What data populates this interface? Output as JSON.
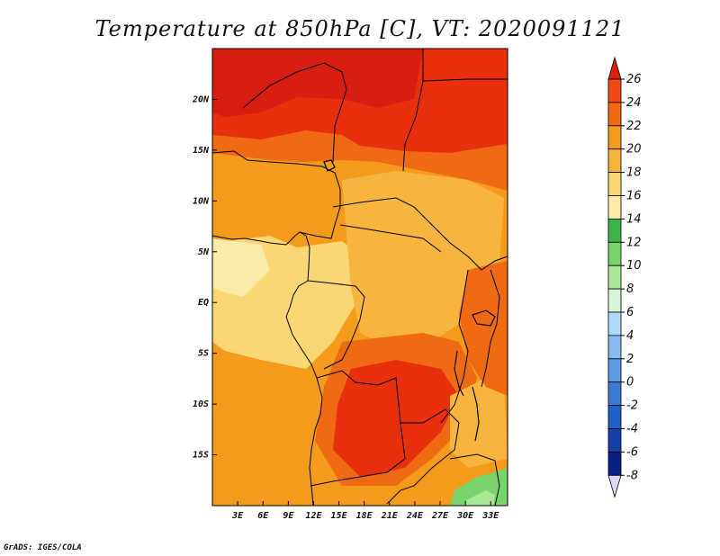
{
  "title": "Temperature at 850hPa [C], VT: 2020091121",
  "footer": "GrADS: IGES/COLA",
  "map": {
    "lon_range": [
      0,
      35
    ],
    "lat_range": [
      -20,
      25
    ],
    "lat_labels": [
      {
        "lat": 20,
        "label": "20N"
      },
      {
        "lat": 15,
        "label": "15N"
      },
      {
        "lat": 10,
        "label": "10N"
      },
      {
        "lat": 5,
        "label": "5N"
      },
      {
        "lat": 0,
        "label": "EQ"
      },
      {
        "lat": -5,
        "label": "5S"
      },
      {
        "lat": -10,
        "label": "10S"
      },
      {
        "lat": -15,
        "label": "15S"
      }
    ],
    "lon_labels": [
      {
        "lon": 3,
        "label": "3E"
      },
      {
        "lon": 6,
        "label": "6E"
      },
      {
        "lon": 9,
        "label": "9E"
      },
      {
        "lon": 12,
        "label": "12E"
      },
      {
        "lon": 15,
        "label": "15E"
      },
      {
        "lon": 18,
        "label": "18E"
      },
      {
        "lon": 21,
        "label": "21E"
      },
      {
        "lon": 24,
        "label": "24E"
      },
      {
        "lon": 27,
        "label": "27E"
      },
      {
        "lon": 30,
        "label": "30E"
      },
      {
        "lon": 33,
        "label": "33E"
      }
    ]
  },
  "colorbar": {
    "levels": [
      "26",
      "24",
      "22",
      "20",
      "18",
      "16",
      "14",
      "12",
      "10",
      "8",
      "6",
      "4",
      "2",
      "0",
      "-2",
      "-4",
      "-6",
      "-8"
    ],
    "colors": [
      "#dc2010",
      "#f04818",
      "#f06a14",
      "#f49b1c",
      "#f7b540",
      "#fad772",
      "#fbeba8",
      "#3cb44a",
      "#78d46a",
      "#a8e698",
      "#d8f4d8",
      "#b0d8f8",
      "#88bcf0",
      "#5c9ae0",
      "#3c7ad6",
      "#2060c8",
      "#1440a8",
      "#0a1e88",
      "#08086a",
      "#d8d8f8"
    ]
  }
}
